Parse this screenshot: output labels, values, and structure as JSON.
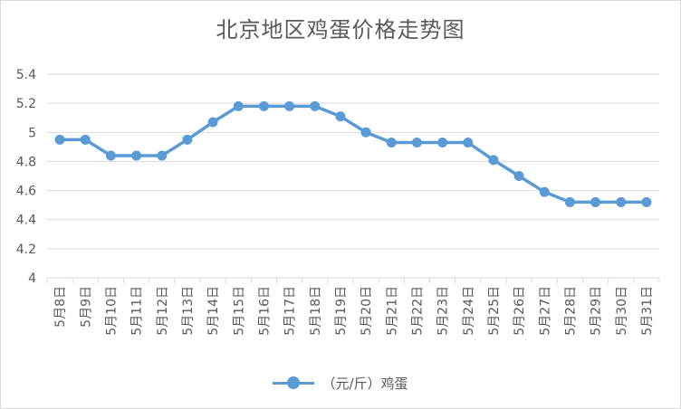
{
  "chart_data": {
    "type": "line",
    "title": "北京地区鸡蛋价格走势图",
    "categories": [
      "5月8日",
      "5月9日",
      "5月10日",
      "5月11日",
      "5月12日",
      "5月13日",
      "5月14日",
      "5月15日",
      "5月16日",
      "5月17日",
      "5月18日",
      "5月19日",
      "5月20日",
      "5月21日",
      "5月22日",
      "5月23日",
      "5月24日",
      "5月25日",
      "5月26日",
      "5月27日",
      "5月28日",
      "5月29日",
      "5月30日",
      "5月31日"
    ],
    "series": [
      {
        "name": "（元/斤）鸡蛋",
        "color": "#5b9bd5",
        "values": [
          4.95,
          4.95,
          4.84,
          4.84,
          4.84,
          4.95,
          5.07,
          5.18,
          5.18,
          5.18,
          5.18,
          5.11,
          5.0,
          4.93,
          4.93,
          4.93,
          4.93,
          4.81,
          4.7,
          4.59,
          4.52,
          4.52,
          4.52,
          4.52
        ]
      }
    ],
    "ylim": [
      4,
      5.4
    ],
    "yticks": [
      "4",
      "4.2",
      "4.4",
      "4.6",
      "4.8",
      "5",
      "5.2",
      "5.4"
    ],
    "grid": true,
    "legend": "bottom"
  }
}
